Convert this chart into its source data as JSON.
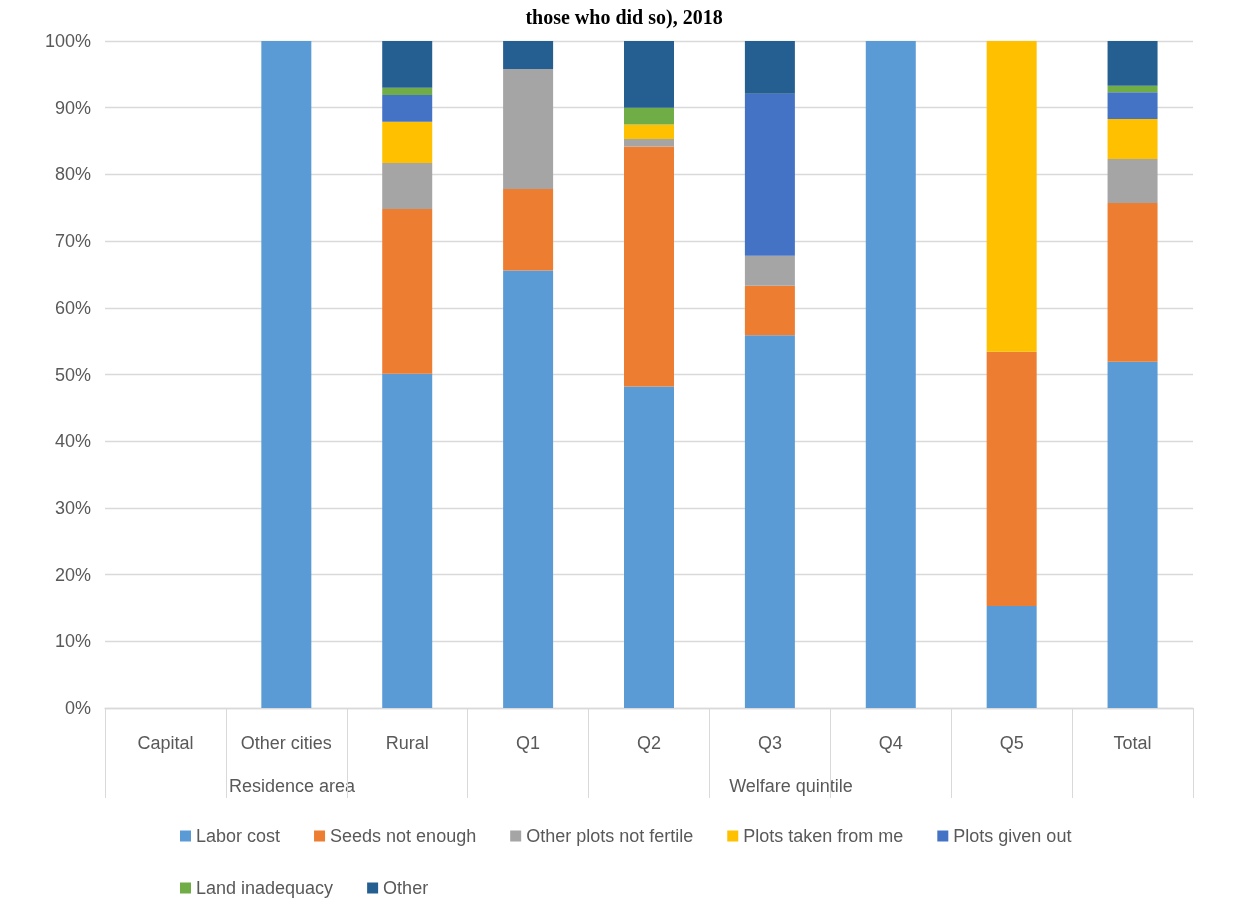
{
  "chart_data": {
    "type": "bar",
    "stacked": true,
    "title": "those who did so), 2018",
    "categories": [
      "Capital",
      "Other cities",
      "Rural",
      "Q1",
      "Q2",
      "Q3",
      "Q4",
      "Q5",
      "Total"
    ],
    "series": [
      {
        "name": "Labor cost",
        "color": "#5b9bd5",
        "values": [
          null,
          100,
          50.1,
          65.6,
          48.2,
          55.9,
          100,
          15.3,
          51.9
        ]
      },
      {
        "name": "Seeds not enough",
        "color": "#ed7d31",
        "values": [
          null,
          null,
          24.7,
          12.2,
          36.0,
          7.4,
          null,
          38.1,
          23.8
        ]
      },
      {
        "name": "Other plots not fertile",
        "color": "#a5a5a5",
        "values": [
          null,
          null,
          6.9,
          18.0,
          1.1,
          4.5,
          null,
          null,
          6.6
        ]
      },
      {
        "name": "Plots taken from me",
        "color": "#ffc000",
        "values": [
          null,
          null,
          6.2,
          null,
          2.2,
          null,
          null,
          46.6,
          6.0
        ]
      },
      {
        "name": "Plots given out",
        "color": "#4472c4",
        "values": [
          null,
          null,
          4.0,
          null,
          null,
          24.3,
          null,
          null,
          4.0
        ]
      },
      {
        "name": "Land inadequacy",
        "color": "#70ad47",
        "values": [
          null,
          null,
          1.1,
          null,
          2.5,
          null,
          null,
          null,
          1.0
        ]
      },
      {
        "name": "Other",
        "color": "#255e91",
        "values": [
          null,
          null,
          7.0,
          4.2,
          10.0,
          7.9,
          null,
          null,
          6.7
        ]
      }
    ],
    "annotations": [
      "Residence area",
      "Welfare quintile"
    ],
    "ylim": [
      0,
      100
    ],
    "yticks": [
      {
        "value": 0,
        "label": "0%"
      },
      {
        "value": 10,
        "label": "10%"
      },
      {
        "value": 20,
        "label": "20%"
      },
      {
        "value": 30,
        "label": "30%"
      },
      {
        "value": 40,
        "label": "40%"
      },
      {
        "value": 50,
        "label": "50%"
      },
      {
        "value": 60,
        "label": "60%"
      },
      {
        "value": 70,
        "label": "70%"
      },
      {
        "value": 80,
        "label": "80%"
      },
      {
        "value": 90,
        "label": "90%"
      },
      {
        "value": 100,
        "label": "100%"
      }
    ],
    "grid": "y",
    "legend": "bottom"
  }
}
